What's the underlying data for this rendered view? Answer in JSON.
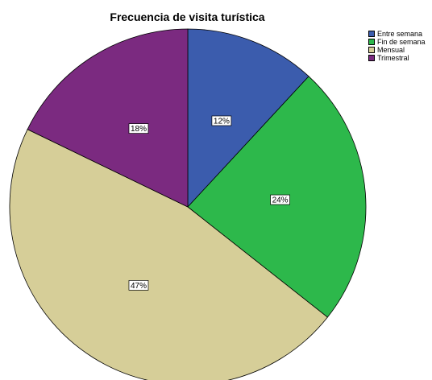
{
  "chart_data": {
    "type": "pie",
    "title": "Frecuencia de visita turística",
    "categories": [
      "Entre semana",
      "Fin de semana",
      "Mensual",
      "Trimestral"
    ],
    "values": [
      12,
      24,
      47,
      18
    ],
    "labels": [
      "12%",
      "24%",
      "47%",
      "18%"
    ],
    "colors": [
      "#3b5cad",
      "#2db84b",
      "#d6ce98",
      "#7b2a80"
    ],
    "legend_position": "top-right",
    "start_angle_deg": 0,
    "direction": "clockwise"
  }
}
